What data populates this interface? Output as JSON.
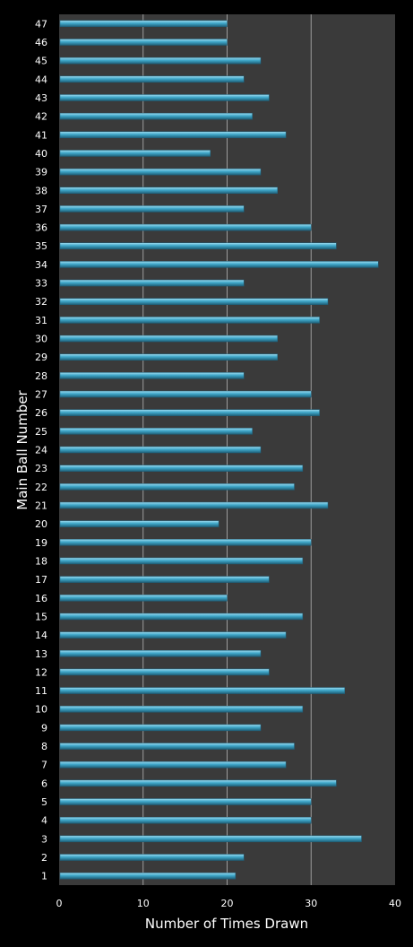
{
  "chart_data": {
    "type": "bar",
    "orientation": "horizontal",
    "categories": [
      "1",
      "2",
      "3",
      "4",
      "5",
      "6",
      "7",
      "8",
      "9",
      "10",
      "11",
      "12",
      "13",
      "14",
      "15",
      "16",
      "17",
      "18",
      "19",
      "20",
      "21",
      "22",
      "23",
      "24",
      "25",
      "26",
      "27",
      "28",
      "29",
      "30",
      "31",
      "32",
      "33",
      "34",
      "35",
      "36",
      "37",
      "38",
      "39",
      "40",
      "41",
      "42",
      "43",
      "44",
      "45",
      "46",
      "47"
    ],
    "values": [
      21,
      22,
      36,
      30,
      30,
      33,
      27,
      28,
      24,
      29,
      34,
      25,
      24,
      27,
      29,
      20,
      25,
      29,
      30,
      19,
      32,
      28,
      29,
      24,
      23,
      31,
      30,
      22,
      26,
      26,
      31,
      32,
      22,
      38,
      33,
      30,
      22,
      26,
      24,
      18,
      27,
      23,
      25,
      22,
      24,
      20,
      20
    ],
    "xlabel": "Number of Times Drawn",
    "ylabel": "Main Ball Number",
    "xlim": [
      0,
      40
    ],
    "xticks": [
      "0",
      "10",
      "20",
      "30",
      "40"
    ],
    "grid": "vertical",
    "legend": "none",
    "colors": {
      "background": "#000000",
      "plot_area": "#3a3a3a",
      "bar": "#3fa7c9",
      "bar_highlight": "#9fdcf0",
      "bar_shadow": "#1f5f78",
      "grid": "#c8c8c8",
      "text": "#ffffff"
    }
  }
}
